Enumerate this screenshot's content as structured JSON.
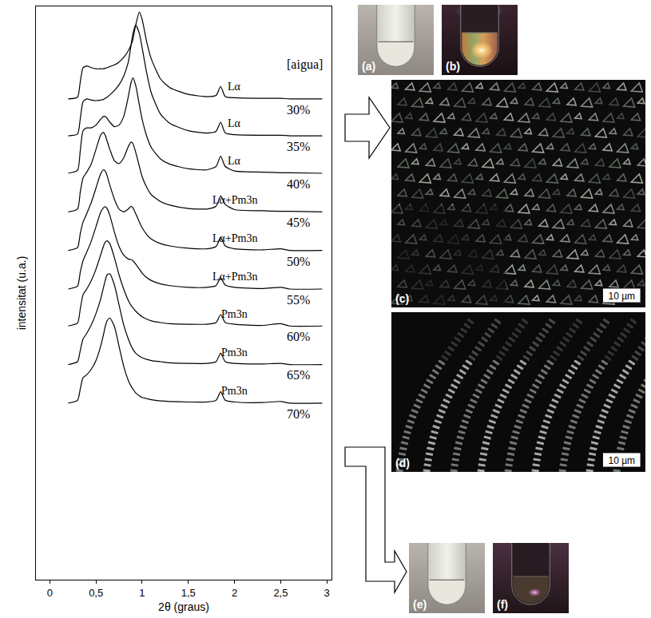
{
  "chart_data": {
    "type": "line",
    "xlabel": "2θ (graus)",
    "ylabel": "intensitat (u.a.)",
    "series_header": "[aigua]",
    "color": "#000000",
    "grid": false,
    "tick_labels": "x",
    "xlim": [
      -0.15,
      3.05
    ],
    "xticks": [
      0,
      {
        "value": 0.5,
        "label": "0,5"
      },
      1,
      {
        "value": 1.5,
        "label": "1,5"
      },
      2,
      {
        "value": 2.5,
        "label": "2,5"
      },
      3
    ],
    "ylim": [
      0,
      101
    ],
    "yticks": [],
    "x": [
      0.2,
      0.3,
      0.33,
      0.36,
      0.4,
      0.45,
      0.5,
      0.55,
      0.58,
      0.6,
      0.62,
      0.65,
      0.7,
      0.75,
      0.8,
      0.85,
      0.88,
      0.9,
      0.93,
      0.97,
      1.0,
      1.05,
      1.1,
      1.2,
      1.3,
      1.5,
      1.7,
      1.8,
      1.85,
      1.9,
      2.0,
      2.3,
      2.5,
      2.6,
      2.95
    ],
    "series": [
      {
        "name": "30%",
        "phase": "Lα",
        "values": [
          84.7,
          85.0,
          87.7,
          90.2,
          90.5,
          90.2,
          90.0,
          90.0,
          90.0,
          90.1,
          90.2,
          90.4,
          90.7,
          91.2,
          92.0,
          93.2,
          94.2,
          95.2,
          97.7,
          100.0,
          98.7,
          94.7,
          91.7,
          88.2,
          86.7,
          85.5,
          85.1,
          85.3,
          86.9,
          85.1,
          84.9,
          84.8,
          84.8,
          84.7,
          84.7
        ]
      },
      {
        "name": "35%",
        "phase": "Lα",
        "values": [
          78.2,
          78.5,
          81.2,
          84.2,
          84.7,
          84.5,
          84.4,
          84.5,
          84.6,
          84.8,
          85.0,
          85.4,
          86.2,
          87.2,
          88.7,
          91.2,
          94.2,
          96.2,
          97.7,
          96.2,
          93.7,
          89.2,
          85.7,
          82.0,
          80.4,
          79.1,
          78.7,
          79.0,
          80.6,
          78.7,
          78.4,
          78.3,
          78.3,
          78.2,
          78.2
        ]
      },
      {
        "name": "40%",
        "phase": "Lα",
        "values": [
          71.6,
          72.1,
          75.6,
          79.1,
          79.6,
          79.6,
          80.1,
          81.1,
          81.6,
          81.6,
          81.3,
          80.6,
          79.8,
          80.1,
          81.6,
          85.1,
          87.6,
          88.4,
          87.1,
          83.6,
          81.1,
          78.1,
          76.1,
          74.1,
          73.2,
          72.4,
          72.2,
          72.8,
          74.6,
          72.8,
          72.0,
          71.8,
          71.7,
          71.7,
          71.6
        ]
      },
      {
        "name": "45%",
        "phase": "Lα+Pm3n",
        "values": [
          64.8,
          65.3,
          68.3,
          70.8,
          71.8,
          73.3,
          75.8,
          78.3,
          78.8,
          78.3,
          77.3,
          75.8,
          73.8,
          73.3,
          74.3,
          76.3,
          77.1,
          76.8,
          75.3,
          72.8,
          71.0,
          69.1,
          67.8,
          66.6,
          66.0,
          65.4,
          65.3,
          65.8,
          67.6,
          66.1,
          65.2,
          65.0,
          64.9,
          64.9,
          64.8
        ]
      },
      {
        "name": "50%",
        "phase": "Lα+Pm3n",
        "values": [
          58.0,
          58.5,
          61.0,
          63.0,
          64.5,
          66.5,
          69.0,
          71.5,
          72.2,
          72.0,
          71.2,
          69.5,
          67.0,
          65.3,
          64.8,
          65.3,
          65.8,
          65.5,
          64.5,
          63.0,
          62.0,
          60.8,
          60.0,
          59.2,
          58.8,
          58.4,
          58.3,
          58.7,
          60.3,
          58.8,
          58.3,
          58.1,
          58.3,
          58.0,
          58.0
        ]
      },
      {
        "name": "55%",
        "phase": "Lα+Pm3n",
        "values": [
          51.2,
          51.7,
          54.2,
          56.2,
          57.7,
          59.7,
          62.2,
          64.7,
          65.5,
          65.7,
          65.4,
          64.2,
          61.2,
          58.7,
          57.2,
          56.5,
          56.4,
          56.2,
          55.6,
          54.7,
          54.0,
          53.2,
          52.7,
          52.1,
          51.8,
          51.5,
          51.5,
          51.8,
          53.2,
          51.9,
          51.5,
          51.3,
          51.5,
          51.2,
          51.2
        ]
      },
      {
        "name": "60%",
        "phase": "Pm3n",
        "values": [
          44.7,
          45.2,
          47.7,
          50.2,
          51.2,
          52.7,
          54.7,
          57.2,
          58.7,
          59.5,
          59.7,
          59.2,
          56.7,
          53.7,
          51.2,
          49.2,
          48.3,
          47.9,
          47.3,
          46.7,
          46.3,
          45.9,
          45.6,
          45.3,
          45.1,
          45.0,
          45.0,
          45.3,
          46.7,
          45.3,
          45.0,
          44.8,
          45.1,
          44.7,
          44.7
        ]
      },
      {
        "name": "65%",
        "phase": "Pm3n",
        "values": [
          37.9,
          38.4,
          40.4,
          42.4,
          43.4,
          44.9,
          46.9,
          49.4,
          51.4,
          52.7,
          53.7,
          53.9,
          51.9,
          48.4,
          44.9,
          42.4,
          41.2,
          40.6,
          39.9,
          39.4,
          39.1,
          38.8,
          38.6,
          38.4,
          38.2,
          38.1,
          38.1,
          38.4,
          39.9,
          38.4,
          38.1,
          38.0,
          38.1,
          37.9,
          37.9
        ]
      },
      {
        "name": "70%",
        "phase": "Pm3n",
        "values": [
          31.1,
          31.6,
          33.6,
          35.6,
          36.1,
          37.1,
          38.6,
          41.1,
          43.1,
          44.6,
          45.6,
          46.1,
          44.6,
          41.1,
          37.6,
          35.1,
          34.1,
          33.6,
          32.9,
          32.4,
          32.1,
          31.9,
          31.7,
          31.5,
          31.4,
          31.3,
          31.3,
          31.6,
          33.1,
          31.6,
          31.3,
          31.2,
          31.4,
          31.1,
          31.1
        ]
      }
    ]
  },
  "panels": [
    {
      "label": "(a)"
    },
    {
      "label": "(b)"
    },
    {
      "label": "(c)",
      "scale_bar": "10 µm"
    },
    {
      "label": "(d)",
      "scale_bar": "10 µm"
    },
    {
      "label": "(e)"
    },
    {
      "label": "(f)"
    }
  ]
}
